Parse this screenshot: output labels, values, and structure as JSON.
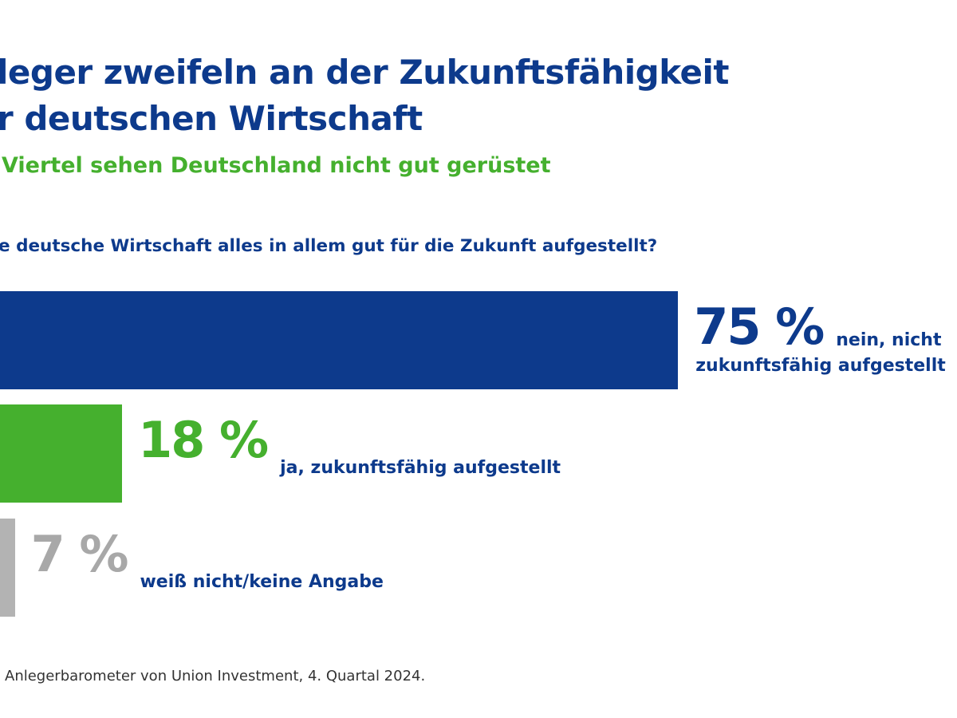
{
  "title": [
    "leger zweifeln an der Zukunftsfähigkeit",
    "r deutschen Wirtschaft"
  ],
  "subtitle": "Viertel sehen Deutschland nicht gut gerüstet",
  "question": "e deutsche Wirtschaft alles in allem gut für die Zukunft aufgestellt?",
  "source": "Anlegerbarometer von Union Investment, 4. Quartal 2024.",
  "chart_data": {
    "type": "bar",
    "orientation": "horizontal",
    "unit": "%",
    "categories": [
      "nein, nicht zukunftsfähig aufgestellt",
      "ja, zukunftsfähig aufgestellt",
      "weiß nicht/keine Angabe"
    ],
    "values": [
      75,
      18,
      7
    ],
    "value_labels": [
      "75 %",
      "18 %",
      "7 %"
    ],
    "label_lines": [
      [
        "nein, nicht",
        "zukunftsfähig aufgestellt"
      ],
      [
        "ja, zukunftsfähig aufgestellt"
      ],
      [
        "weiß nicht/keine Angabe"
      ]
    ],
    "colors": [
      "#0d3a8c",
      "#45b02e",
      "#b3b3b3"
    ],
    "grid": false,
    "legend": "none"
  }
}
